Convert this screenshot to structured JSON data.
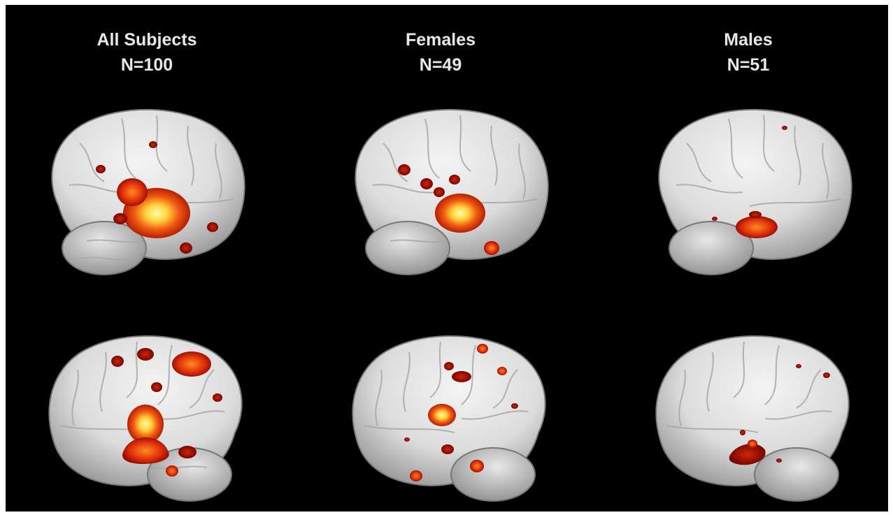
{
  "columns": [
    {
      "title": "All Subjects",
      "n": "N=100"
    },
    {
      "title": "Females",
      "n": "N=49"
    },
    {
      "title": "Males",
      "n": "N=51"
    }
  ],
  "colors": {
    "background": "#000000",
    "brain_surface": "#e6e6e6",
    "activation_low": "#8b0000",
    "activation_mid": "#e83a10",
    "activation_high": "#fff27a"
  },
  "icons": [
    "brain-left-lateral-view",
    "brain-right-lateral-view"
  ]
}
